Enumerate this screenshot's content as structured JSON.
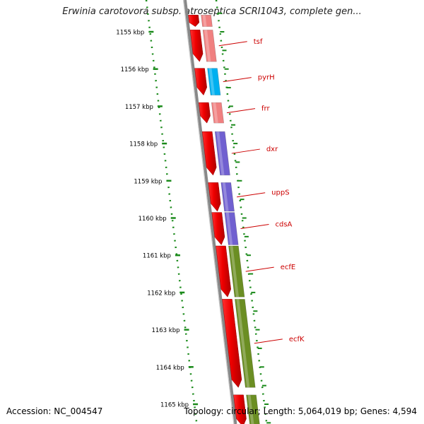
{
  "title": "Erwinia carotovora subsp. atroseptica SCRI1043, complete gen...",
  "footer": {
    "accession": "Accession: NC_004547",
    "summary": "Topology: circular; Length: 5,064,019 bp; Genes: 4,594"
  },
  "ruler": {
    "unit": "kbp",
    "labels": [
      "1155 kbp",
      "1156 kbp",
      "1157 kbp",
      "1158 kbp",
      "1159 kbp",
      "1160 kbp",
      "1161 kbp",
      "1162 kbp",
      "1163 kbp",
      "1164 kbp",
      "1165 kbp"
    ],
    "tick_color": "#1a8a1a"
  },
  "genes": [
    {
      "name": "",
      "start_kbp": 1154.55,
      "end_kbp": 1154.86,
      "cog_color": "#f08080"
    },
    {
      "name": "tsf",
      "start_kbp": 1154.95,
      "end_kbp": 1155.8,
      "cog_color": "#f08080"
    },
    {
      "name": "pyrH",
      "start_kbp": 1155.98,
      "end_kbp": 1156.7,
      "cog_color": "#00b0f0"
    },
    {
      "name": "frr",
      "start_kbp": 1156.9,
      "end_kbp": 1157.45,
      "cog_color": "#f08080"
    },
    {
      "name": "dxr",
      "start_kbp": 1157.68,
      "end_kbp": 1158.85,
      "cog_color": "#7060d0"
    },
    {
      "name": "uppS",
      "start_kbp": 1159.05,
      "end_kbp": 1159.82,
      "cog_color": "#7060d0"
    },
    {
      "name": "cdsA",
      "start_kbp": 1159.85,
      "end_kbp": 1160.72,
      "cog_color": "#7060d0"
    },
    {
      "name": "ecfE",
      "start_kbp": 1160.75,
      "end_kbp": 1162.12,
      "cog_color": "#6b8e23"
    },
    {
      "name": "ecfK",
      "start_kbp": 1162.18,
      "end_kbp": 1164.55,
      "cog_color": "#6b8e23"
    },
    {
      "name": "",
      "start_kbp": 1164.75,
      "end_kbp": 1165.6,
      "cog_color": "#6b8e23"
    }
  ],
  "colors": {
    "cds": "#ee0000",
    "backbone": "#888888",
    "label": "#cc0000",
    "label_line": "#cc0000"
  }
}
